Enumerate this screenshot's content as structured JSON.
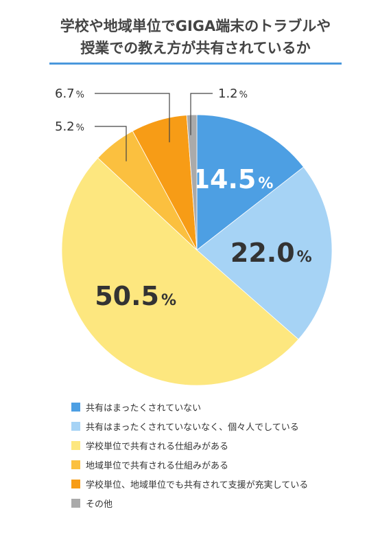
{
  "title_lines": [
    "学校や地域単位でGIGA端末のトラブルや",
    "授業での教え方が共有されているか"
  ],
  "chart_data": {
    "type": "pie",
    "title": "学校や地域単位でGIGA端末のトラブルや授業での教え方が共有されているか",
    "unit": "%",
    "start_angle_deg": 0,
    "direction": "clockwise",
    "slices": [
      {
        "label": "共有はまったくされていない",
        "value": 14.5,
        "display": "14.5",
        "color": "#4d9fe3"
      },
      {
        "label": "共有はまったくされていないなく、個々人でしている",
        "value": 22.0,
        "display": "22.0",
        "color": "#a6d3f5"
      },
      {
        "label": "学校単位で共有される仕組みがある",
        "value": 50.5,
        "display": "50.5",
        "color": "#fde77f"
      },
      {
        "label": "地域単位で共有される仕組みがある",
        "value": 5.2,
        "display": "5.2",
        "color": "#fbc03f"
      },
      {
        "label": "学校単位、地域単位でも共有されて支援が充実している",
        "value": 6.7,
        "display": "6.7",
        "color": "#f79c16"
      },
      {
        "label": "その他",
        "value": 1.2,
        "display": "1.2",
        "color": "#aaaaaa"
      }
    ],
    "legend_position": "bottom"
  }
}
